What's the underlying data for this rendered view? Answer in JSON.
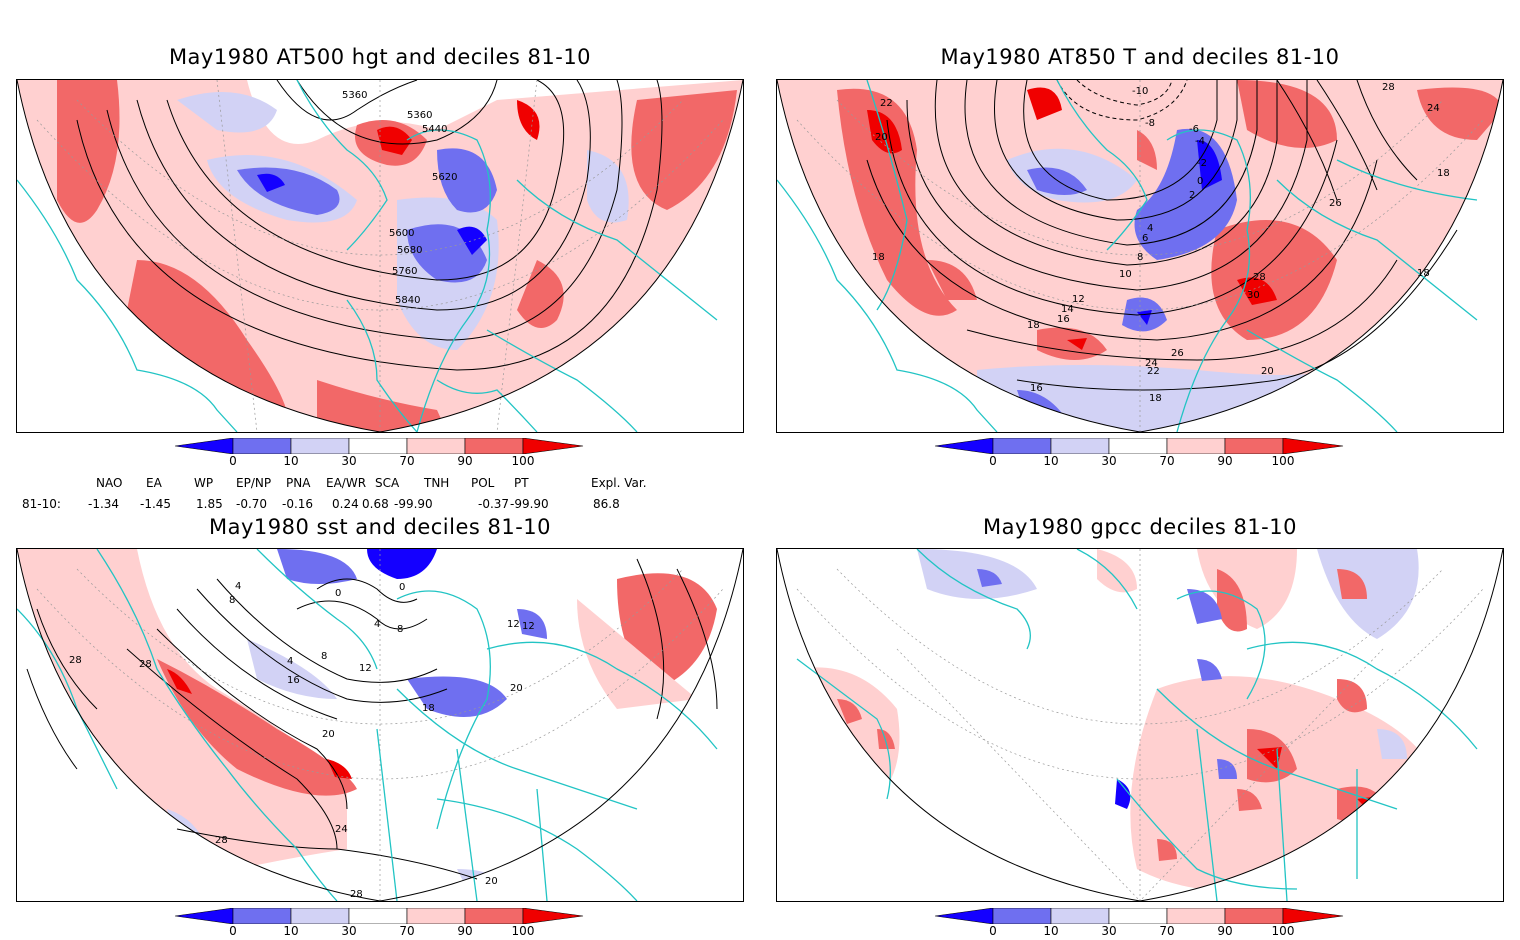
{
  "panels": [
    {
      "title": "May1980 AT500 hgt and deciles 81-10",
      "contour_labels": [
        "5360",
        "5360",
        "5440",
        "5620",
        "5600",
        "5680",
        "5760",
        "5840"
      ]
    },
    {
      "title": "May1980 AT850 T and deciles 81-10",
      "contour_labels": [
        "22",
        "20",
        "18",
        "-10",
        "-8",
        "-6",
        "-4",
        "-2",
        "0",
        "2",
        "4",
        "6",
        "8",
        "10",
        "12",
        "14",
        "16",
        "18",
        "24",
        "26",
        "28",
        "30",
        "20",
        "22",
        "18",
        "16",
        "28",
        "24",
        "18",
        "26",
        "18"
      ]
    },
    {
      "title": "May1980 sst and deciles 81-10",
      "contour_labels": [
        "4",
        "8",
        "0",
        "0",
        "4",
        "8",
        "12",
        "4",
        "8",
        "12",
        "16",
        "20",
        "28",
        "28",
        "20",
        "24",
        "28",
        "28",
        "18",
        "20",
        "12"
      ]
    },
    {
      "title": "May1980 gpcc deciles 81-10",
      "contour_labels": []
    }
  ],
  "colorbar": {
    "labels": [
      "0",
      "10",
      "30",
      "70",
      "90",
      "100"
    ],
    "colors": [
      "#1400ff",
      "#6f6ff0",
      "#d2d2f5",
      "#ffffff",
      "#ffd0d0",
      "#f26868",
      "#f00000"
    ]
  },
  "indices": {
    "headers": [
      "NAO",
      "EA",
      "WP",
      "EP/NP",
      "PNA",
      "EA/WR",
      "SCA",
      "TNH",
      "POL",
      "PT",
      "Expl. Var."
    ],
    "row_label": "81-10:",
    "values": [
      "-1.34",
      "-1.45",
      "1.85",
      "-0.70",
      "-0.16",
      "0.24",
      "0.68",
      "-99.90",
      "-0.37",
      "-99.90",
      "86.8"
    ]
  },
  "colors": {
    "coast": "#22c4c4",
    "warm": "#f26868",
    "light_warm": "#ffd0d0",
    "cold": "#6f6ff0",
    "light_cold": "#d2d2f5"
  }
}
